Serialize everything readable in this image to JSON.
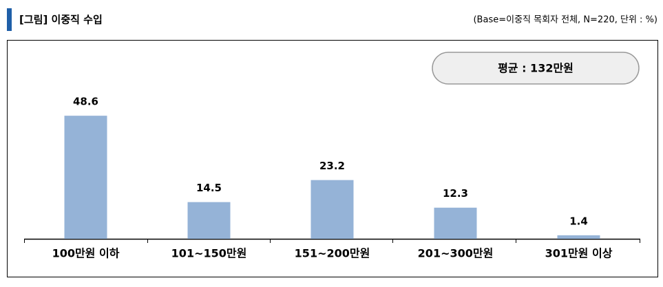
{
  "chart_data": {
    "type": "bar",
    "title": "[그림] 이중직 수입",
    "subtitle": "(Base=이중직 목회자 전체, N=220, 단위 : %)",
    "annotation": "평균 : 132만원",
    "categories": [
      "100만원 이하",
      "101~150만원",
      "151~200만원",
      "201~300만원",
      "301만원 이상"
    ],
    "values": [
      48.6,
      14.5,
      23.2,
      12.3,
      1.4
    ],
    "color": "#95b3d7"
  }
}
